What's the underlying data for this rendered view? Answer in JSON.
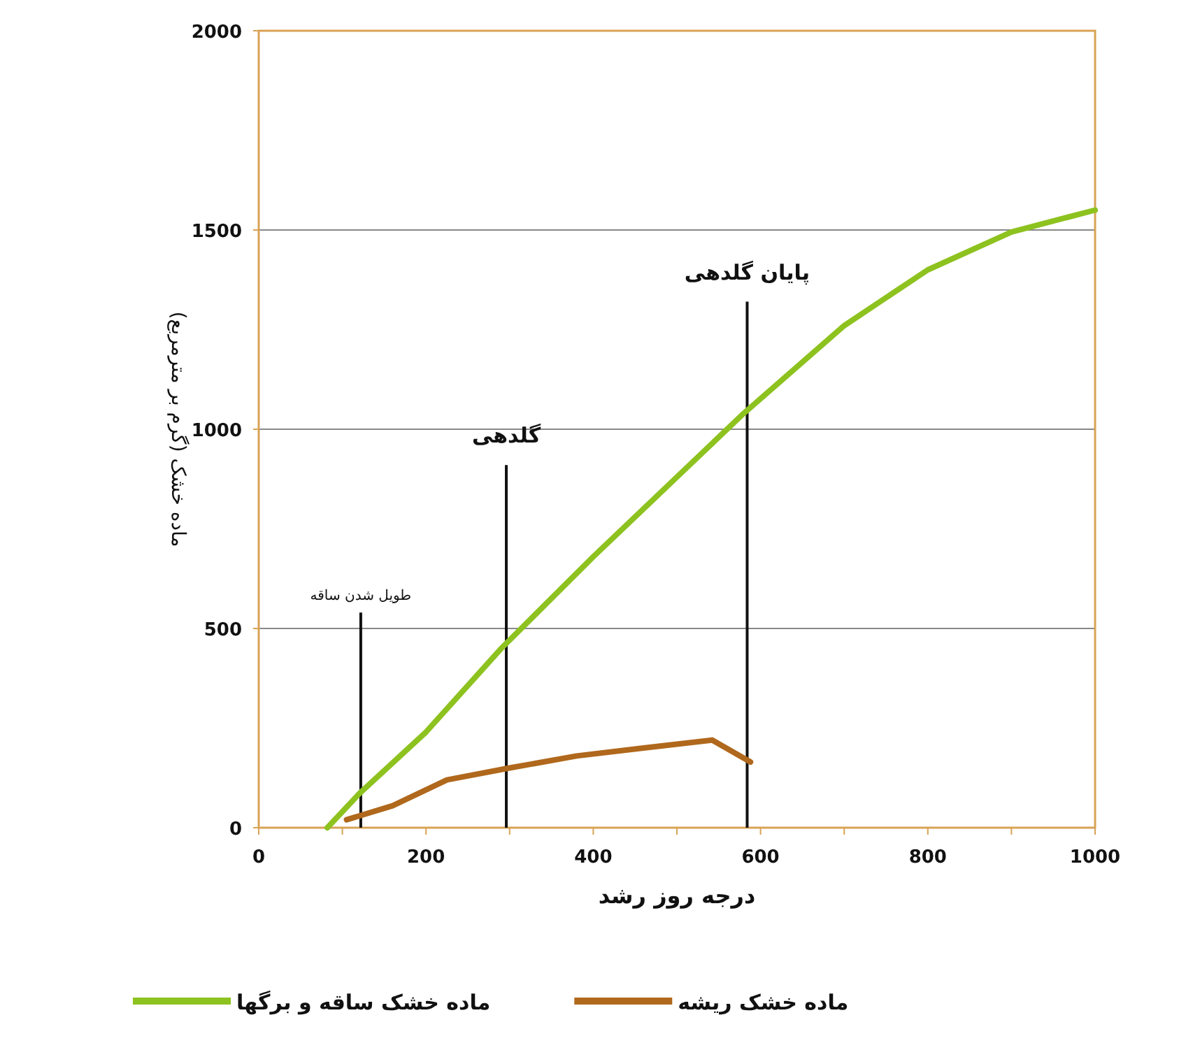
{
  "chart_data": {
    "type": "line",
    "xlabel": "درجه روز رشد",
    "ylabel": "ماده خشک (گرم بر مترمربع)",
    "xlim": [
      0,
      1000
    ],
    "xticks": [
      0,
      {
        "value": 100,
        "label": null
      },
      200,
      {
        "value": 300,
        "label": null
      },
      400,
      {
        "value": 500,
        "label": null
      },
      600,
      {
        "value": 700,
        "label": null
      },
      800,
      {
        "value": 900,
        "label": null
      },
      1000
    ],
    "ylim": [
      0,
      2000
    ],
    "yticks": [
      0,
      500,
      1000,
      1500,
      2000
    ],
    "grid": "y",
    "legend": "bottom",
    "series": [
      {
        "name": "ماده خشک ساقه و برگها",
        "color": "#8dc21f",
        "x": [
          82,
          120,
          200,
          290,
          400,
          500,
          580,
          700,
          800,
          900,
          1000
        ],
        "values": [
          0,
          85,
          240,
          450,
          680,
          880,
          1040,
          1260,
          1400,
          1495,
          1550
        ]
      },
      {
        "name": "ماده خشک ریشه",
        "color": "#b0681c",
        "x": [
          105,
          160,
          225,
          300,
          380,
          460,
          542,
          588
        ],
        "values": [
          20,
          55,
          120,
          150,
          180,
          200,
          220,
          165
        ]
      }
    ],
    "ref_lines": [
      {
        "axis": "x",
        "value": 122,
        "label": "طویل شدن ساقه"
      },
      {
        "axis": "x",
        "value": 296,
        "label": "گلدهی"
      },
      {
        "axis": "x",
        "value": 584,
        "label": "پایان گلدهی"
      }
    ]
  }
}
